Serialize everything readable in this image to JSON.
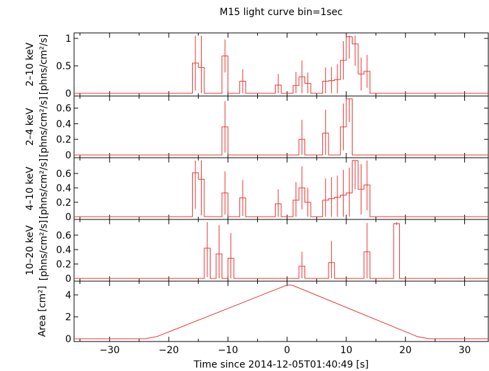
{
  "figure": {
    "title": "M15 light curve bin=1sec",
    "xlabel": "Time since 2014-12-05T01:40:49 [s]"
  },
  "chart_data": [
    {
      "type": "line",
      "panel": "2-10 keV",
      "ylabel_lines": [
        "2–10 keV",
        "[phns/cm²/s]"
      ],
      "ylim": [
        0,
        1.05
      ],
      "yticks": [
        0,
        0.5,
        1
      ],
      "ytick_labels": [
        "0",
        "0.5",
        "1"
      ],
      "xlim": [
        -36,
        34
      ],
      "step_bins": [
        {
          "x0": -36,
          "x1": -16,
          "y": 0,
          "err": 0
        },
        {
          "x0": -16,
          "x1": -15,
          "y": 0.55,
          "err": 0.5
        },
        {
          "x0": -15,
          "x1": -14,
          "y": 0.47,
          "err": 0.6
        },
        {
          "x0": -14,
          "x1": -11,
          "y": 0,
          "err": 0
        },
        {
          "x0": -11,
          "x1": -10,
          "y": 0.68,
          "err": 0.3
        },
        {
          "x0": -10,
          "x1": -8,
          "y": 0,
          "err": 0
        },
        {
          "x0": -8,
          "x1": -7,
          "y": 0.22,
          "err": 0.22
        },
        {
          "x0": -7,
          "x1": -2,
          "y": 0,
          "err": 0
        },
        {
          "x0": -2,
          "x1": -1,
          "y": 0.15,
          "err": 0.2
        },
        {
          "x0": -1,
          "x1": 1,
          "y": 0,
          "err": 0
        },
        {
          "x0": 1,
          "x1": 2,
          "y": 0.14,
          "err": 0.25
        },
        {
          "x0": 2,
          "x1": 3,
          "y": 0.3,
          "err": 0.3
        },
        {
          "x0": 3,
          "x1": 4,
          "y": 0.18,
          "err": 0.2
        },
        {
          "x0": 4,
          "x1": 6,
          "y": 0,
          "err": 0
        },
        {
          "x0": 6,
          "x1": 7,
          "y": 0.22,
          "err": 0.25
        },
        {
          "x0": 7,
          "x1": 8,
          "y": 0.23,
          "err": 0.25
        },
        {
          "x0": 8,
          "x1": 9,
          "y": 0.25,
          "err": 0.28
        },
        {
          "x0": 9,
          "x1": 10,
          "y": 0.6,
          "err": 0.35
        },
        {
          "x0": 10,
          "x1": 11,
          "y": 1.03,
          "err": 0.4
        },
        {
          "x0": 11,
          "x1": 12,
          "y": 0.9,
          "err": 0.4
        },
        {
          "x0": 12,
          "x1": 13,
          "y": 0.35,
          "err": 0.3
        },
        {
          "x0": 13,
          "x1": 14,
          "y": 0.4,
          "err": 0.3
        },
        {
          "x0": 14,
          "x1": 34,
          "y": 0,
          "err": 0
        }
      ]
    },
    {
      "type": "line",
      "panel": "2-4 keV",
      "ylabel_lines": [
        "2–4 keV",
        "[phns/cm²/s]"
      ],
      "ylim": [
        0,
        0.72
      ],
      "yticks": [
        0,
        0.2,
        0.4,
        0.6
      ],
      "ytick_labels": [
        "0",
        "0.2",
        "0.4",
        "0.6"
      ],
      "xlim": [
        -36,
        34
      ],
      "step_bins": [
        {
          "x0": -36,
          "x1": -11,
          "y": 0,
          "err": 0
        },
        {
          "x0": -11,
          "x1": -10,
          "y": 0.36,
          "err": 0.33
        },
        {
          "x0": -10,
          "x1": 2,
          "y": 0,
          "err": 0
        },
        {
          "x0": 2,
          "x1": 3,
          "y": 0.2,
          "err": 0.25
        },
        {
          "x0": 3,
          "x1": 6,
          "y": 0,
          "err": 0
        },
        {
          "x0": 6,
          "x1": 7,
          "y": 0.28,
          "err": 0.3
        },
        {
          "x0": 7,
          "x1": 9,
          "y": 0,
          "err": 0
        },
        {
          "x0": 9,
          "x1": 10,
          "y": 0.36,
          "err": 0.3
        },
        {
          "x0": 10,
          "x1": 11,
          "y": 0.72,
          "err": 0.3
        },
        {
          "x0": 11,
          "x1": 12,
          "y": 0.0,
          "err": 0
        },
        {
          "x0": 12,
          "x1": 34,
          "y": 0,
          "err": 0
        }
      ]
    },
    {
      "type": "line",
      "panel": "4-10 keV",
      "ylabel_lines": [
        "4–10 keV",
        "[phns/cm²/s]"
      ],
      "ylim": [
        0,
        0.78
      ],
      "yticks": [
        0,
        0.2,
        0.4,
        0.6
      ],
      "ytick_labels": [
        "0",
        "0.2",
        "0.4",
        "0.6"
      ],
      "xlim": [
        -36,
        34
      ],
      "step_bins": [
        {
          "x0": -36,
          "x1": -16,
          "y": 0,
          "err": 0
        },
        {
          "x0": -16,
          "x1": -15,
          "y": 0.61,
          "err": 0.5
        },
        {
          "x0": -15,
          "x1": -14,
          "y": 0.52,
          "err": 0.5
        },
        {
          "x0": -14,
          "x1": -11,
          "y": 0,
          "err": 0
        },
        {
          "x0": -11,
          "x1": -10,
          "y": 0.33,
          "err": 0.3
        },
        {
          "x0": -10,
          "x1": -8,
          "y": 0,
          "err": 0
        },
        {
          "x0": -8,
          "x1": -7,
          "y": 0.26,
          "err": 0.25
        },
        {
          "x0": -7,
          "x1": -2,
          "y": 0,
          "err": 0
        },
        {
          "x0": -2,
          "x1": -1,
          "y": 0.18,
          "err": 0.2
        },
        {
          "x0": -1,
          "x1": 1,
          "y": 0,
          "err": 0
        },
        {
          "x0": 1,
          "x1": 2,
          "y": 0.23,
          "err": 0.25
        },
        {
          "x0": 2,
          "x1": 3,
          "y": 0.4,
          "err": 0.3
        },
        {
          "x0": 3,
          "x1": 4,
          "y": 0.2,
          "err": 0.2
        },
        {
          "x0": 4,
          "x1": 6,
          "y": 0,
          "err": 0
        },
        {
          "x0": 6,
          "x1": 7,
          "y": 0.23,
          "err": 0.3
        },
        {
          "x0": 7,
          "x1": 8,
          "y": 0.25,
          "err": 0.3
        },
        {
          "x0": 8,
          "x1": 9,
          "y": 0.27,
          "err": 0.3
        },
        {
          "x0": 9,
          "x1": 10,
          "y": 0.3,
          "err": 0.35
        },
        {
          "x0": 10,
          "x1": 11,
          "y": 0.33,
          "err": 0.35
        },
        {
          "x0": 11,
          "x1": 12,
          "y": 0.78,
          "err": 0.4
        },
        {
          "x0": 12,
          "x1": 13,
          "y": 0.38,
          "err": 0.35
        },
        {
          "x0": 13,
          "x1": 14,
          "y": 0.44,
          "err": 0.35
        },
        {
          "x0": 14,
          "x1": 34,
          "y": 0,
          "err": 0
        }
      ]
    },
    {
      "type": "line",
      "panel": "10-20 keV",
      "ylabel_lines": [
        "10–20 keV",
        "[phns/cm²/s]"
      ],
      "ylim": [
        0,
        0.78
      ],
      "yticks": [
        0,
        0.2,
        0.4,
        0.6
      ],
      "ytick_labels": [
        "0",
        "0.2",
        "0.4",
        "0.6"
      ],
      "xlim": [
        -36,
        34
      ],
      "step_bins": [
        {
          "x0": -36,
          "x1": -14,
          "y": 0,
          "err": 0
        },
        {
          "x0": -14,
          "x1": -13,
          "y": 0.42,
          "err": 0.4
        },
        {
          "x0": -13,
          "x1": -12,
          "y": 0,
          "err": 0
        },
        {
          "x0": -12,
          "x1": -11,
          "y": 0.34,
          "err": 0.4
        },
        {
          "x0": -11,
          "x1": -10,
          "y": 0,
          "err": 0
        },
        {
          "x0": -10,
          "x1": -9,
          "y": 0.28,
          "err": 0.35
        },
        {
          "x0": -9,
          "x1": 2,
          "y": 0,
          "err": 0
        },
        {
          "x0": 2,
          "x1": 3,
          "y": 0.17,
          "err": 0.2
        },
        {
          "x0": 3,
          "x1": 7,
          "y": 0,
          "err": 0
        },
        {
          "x0": 7,
          "x1": 8,
          "y": 0.22,
          "err": 0.3
        },
        {
          "x0": 8,
          "x1": 13,
          "y": 0,
          "err": 0
        },
        {
          "x0": 13,
          "x1": 14,
          "y": 0.37,
          "err": 0.4
        },
        {
          "x0": 14,
          "x1": 18,
          "y": 0,
          "err": 0
        },
        {
          "x0": 18,
          "x1": 19,
          "y": 0.76,
          "err": 0.02
        },
        {
          "x0": 19,
          "x1": 34,
          "y": 0,
          "err": 0
        }
      ]
    },
    {
      "type": "line",
      "panel": "Area",
      "ylabel_lines": [
        "Area [cm²]"
      ],
      "ylim": [
        0,
        5
      ],
      "yticks": [
        0,
        2,
        4
      ],
      "ytick_labels": [
        "0",
        "2",
        "4"
      ],
      "xlim": [
        -36,
        34
      ],
      "xticks": [
        -30,
        -20,
        -10,
        0,
        10,
        20,
        30
      ],
      "xtick_labels": [
        "−30",
        "−20",
        "−10",
        "0",
        "10",
        "20",
        "30"
      ],
      "x": [
        -36,
        -24,
        -22,
        0,
        0.5,
        1,
        22,
        24,
        34
      ],
      "y": [
        0,
        0,
        0.2,
        4.9,
        4.9,
        4.85,
        0.2,
        0,
        0
      ]
    }
  ]
}
